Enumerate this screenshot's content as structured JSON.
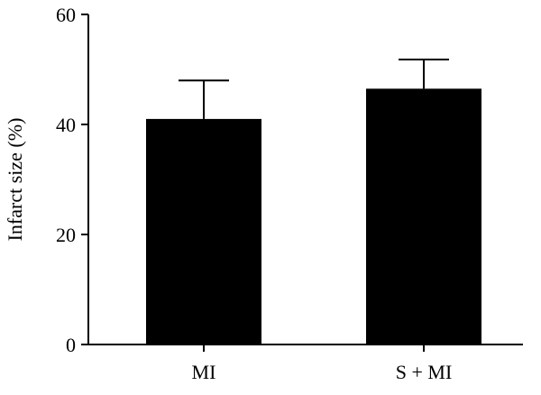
{
  "chart_data": {
    "type": "bar",
    "title": "",
    "xlabel": "",
    "ylabel": "Infarct size (%)",
    "categories": [
      "MI",
      "S + MI"
    ],
    "values": [
      41,
      46.5
    ],
    "errors": [
      7,
      5.3
    ],
    "ylim": [
      0,
      60
    ],
    "yticks": [
      0,
      20,
      40,
      60
    ],
    "ytick_labels": [
      "0",
      "20",
      "40",
      "60"
    ],
    "grid": false,
    "legend": "none",
    "bar_color": "#000000"
  }
}
